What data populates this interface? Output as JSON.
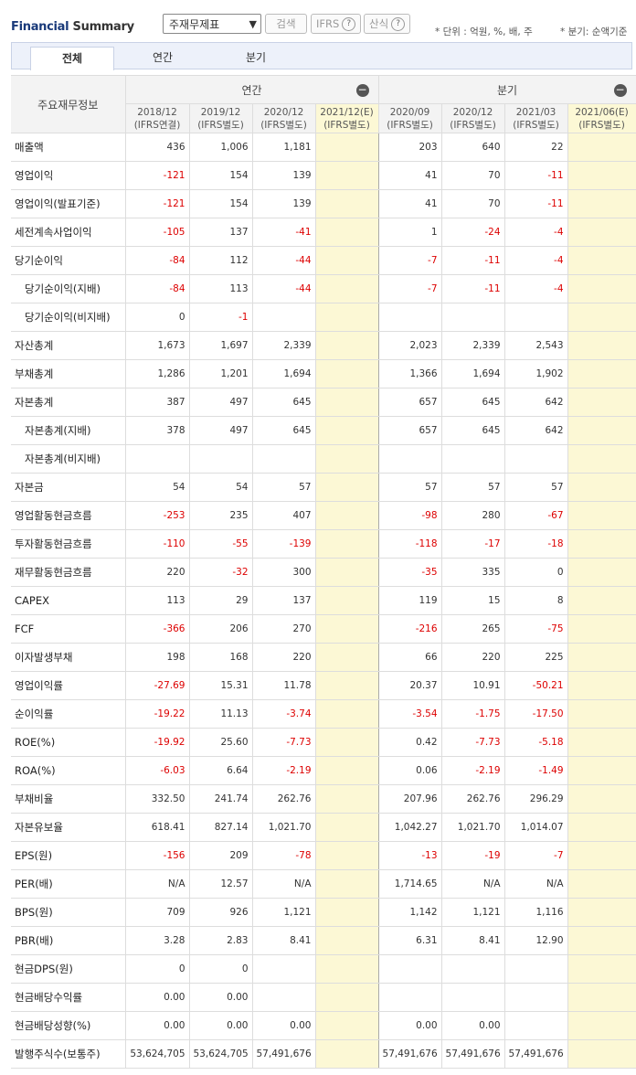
{
  "header": {
    "title_a": "Financial",
    "title_b": "Summary",
    "select_value": "주재무제표",
    "search_btn": "검색",
    "ifrs_btn": "IFRS",
    "formula_btn": "산식",
    "unit_text": "* 단위 : 억원, %, 배, 주",
    "basis_text": "* 분기: 순액기준"
  },
  "tabs": [
    "전체",
    "연간",
    "분기"
  ],
  "table": {
    "corner": "주요재무정보",
    "annual_label": "연간",
    "quarter_label": "분기",
    "columns": [
      {
        "period": "2018/12",
        "basis": "(IFRS연결)"
      },
      {
        "period": "2019/12",
        "basis": "(IFRS별도)"
      },
      {
        "period": "2020/12",
        "basis": "(IFRS별도)"
      },
      {
        "period": "2021/12(E)",
        "basis": "(IFRS별도)"
      },
      {
        "period": "2020/09",
        "basis": "(IFRS별도)"
      },
      {
        "period": "2020/12",
        "basis": "(IFRS별도)"
      },
      {
        "period": "2021/03",
        "basis": "(IFRS별도)"
      },
      {
        "period": "2021/06(E)",
        "basis": "(IFRS별도)"
      }
    ],
    "rows": [
      {
        "label": "매출액",
        "values": [
          "436",
          "1,006",
          "1,181",
          "",
          "203",
          "640",
          "22",
          ""
        ]
      },
      {
        "label": "영업이익",
        "values": [
          "-121",
          "154",
          "139",
          "",
          "41",
          "70",
          "-11",
          ""
        ]
      },
      {
        "label": "영업이익(발표기준)",
        "values": [
          "-121",
          "154",
          "139",
          "",
          "41",
          "70",
          "-11",
          ""
        ]
      },
      {
        "label": "세전계속사업이익",
        "values": [
          "-105",
          "137",
          "-41",
          "",
          "1",
          "-24",
          "-4",
          ""
        ]
      },
      {
        "label": "당기순이익",
        "values": [
          "-84",
          "112",
          "-44",
          "",
          "-7",
          "-11",
          "-4",
          ""
        ]
      },
      {
        "label": "당기순이익(지배)",
        "indent": true,
        "values": [
          "-84",
          "113",
          "-44",
          "",
          "-7",
          "-11",
          "-4",
          ""
        ]
      },
      {
        "label": "당기순이익(비지배)",
        "indent": true,
        "values": [
          "0",
          "-1",
          "",
          "",
          "",
          "",
          "",
          ""
        ]
      },
      {
        "label": "자산총계",
        "values": [
          "1,673",
          "1,697",
          "2,339",
          "",
          "2,023",
          "2,339",
          "2,543",
          ""
        ]
      },
      {
        "label": "부채총계",
        "values": [
          "1,286",
          "1,201",
          "1,694",
          "",
          "1,366",
          "1,694",
          "1,902",
          ""
        ]
      },
      {
        "label": "자본총계",
        "values": [
          "387",
          "497",
          "645",
          "",
          "657",
          "645",
          "642",
          ""
        ]
      },
      {
        "label": "자본총계(지배)",
        "indent": true,
        "values": [
          "378",
          "497",
          "645",
          "",
          "657",
          "645",
          "642",
          ""
        ]
      },
      {
        "label": "자본총계(비지배)",
        "indent": true,
        "values": [
          "",
          "",
          "",
          "",
          "",
          "",
          "",
          ""
        ]
      },
      {
        "label": "자본금",
        "values": [
          "54",
          "54",
          "57",
          "",
          "57",
          "57",
          "57",
          ""
        ]
      },
      {
        "label": "영업활동현금흐름",
        "values": [
          "-253",
          "235",
          "407",
          "",
          "-98",
          "280",
          "-67",
          ""
        ]
      },
      {
        "label": "투자활동현금흐름",
        "values": [
          "-110",
          "-55",
          "-139",
          "",
          "-118",
          "-17",
          "-18",
          ""
        ]
      },
      {
        "label": "재무활동현금흐름",
        "values": [
          "220",
          "-32",
          "300",
          "",
          "-35",
          "335",
          "0",
          ""
        ]
      },
      {
        "label": "CAPEX",
        "values": [
          "113",
          "29",
          "137",
          "",
          "119",
          "15",
          "8",
          ""
        ]
      },
      {
        "label": "FCF",
        "values": [
          "-366",
          "206",
          "270",
          "",
          "-216",
          "265",
          "-75",
          ""
        ]
      },
      {
        "label": "이자발생부채",
        "values": [
          "198",
          "168",
          "220",
          "",
          "66",
          "220",
          "225",
          ""
        ]
      },
      {
        "label": "영업이익률",
        "values": [
          "-27.69",
          "15.31",
          "11.78",
          "",
          "20.37",
          "10.91",
          "-50.21",
          ""
        ]
      },
      {
        "label": "순이익률",
        "values": [
          "-19.22",
          "11.13",
          "-3.74",
          "",
          "-3.54",
          "-1.75",
          "-17.50",
          ""
        ]
      },
      {
        "label": "ROE(%)",
        "values": [
          "-19.92",
          "25.60",
          "-7.73",
          "",
          "0.42",
          "-7.73",
          "-5.18",
          ""
        ]
      },
      {
        "label": "ROA(%)",
        "values": [
          "-6.03",
          "6.64",
          "-2.19",
          "",
          "0.06",
          "-2.19",
          "-1.49",
          ""
        ]
      },
      {
        "label": "부채비율",
        "values": [
          "332.50",
          "241.74",
          "262.76",
          "",
          "207.96",
          "262.76",
          "296.29",
          ""
        ]
      },
      {
        "label": "자본유보율",
        "values": [
          "618.41",
          "827.14",
          "1,021.70",
          "",
          "1,042.27",
          "1,021.70",
          "1,014.07",
          ""
        ]
      },
      {
        "label": "EPS(원)",
        "values": [
          "-156",
          "209",
          "-78",
          "",
          "-13",
          "-19",
          "-7",
          ""
        ]
      },
      {
        "label": "PER(배)",
        "values": [
          "N/A",
          "12.57",
          "N/A",
          "",
          "1,714.65",
          "N/A",
          "N/A",
          ""
        ]
      },
      {
        "label": "BPS(원)",
        "values": [
          "709",
          "926",
          "1,121",
          "",
          "1,142",
          "1,121",
          "1,116",
          ""
        ]
      },
      {
        "label": "PBR(배)",
        "values": [
          "3.28",
          "2.83",
          "8.41",
          "",
          "6.31",
          "8.41",
          "12.90",
          ""
        ]
      },
      {
        "label": "현금DPS(원)",
        "values": [
          "0",
          "0",
          "",
          "",
          "",
          "",
          "",
          ""
        ]
      },
      {
        "label": "현금배당수익률",
        "values": [
          "0.00",
          "0.00",
          "",
          "",
          "",
          "",
          "",
          ""
        ]
      },
      {
        "label": "현금배당성향(%)",
        "values": [
          "0.00",
          "0.00",
          "0.00",
          "",
          "0.00",
          "0.00",
          "",
          ""
        ]
      },
      {
        "label": "발행주식수(보통주)",
        "values": [
          "53,624,705",
          "53,624,705",
          "57,491,676",
          "",
          "57,491,676",
          "57,491,676",
          "57,491,676",
          ""
        ]
      }
    ]
  }
}
